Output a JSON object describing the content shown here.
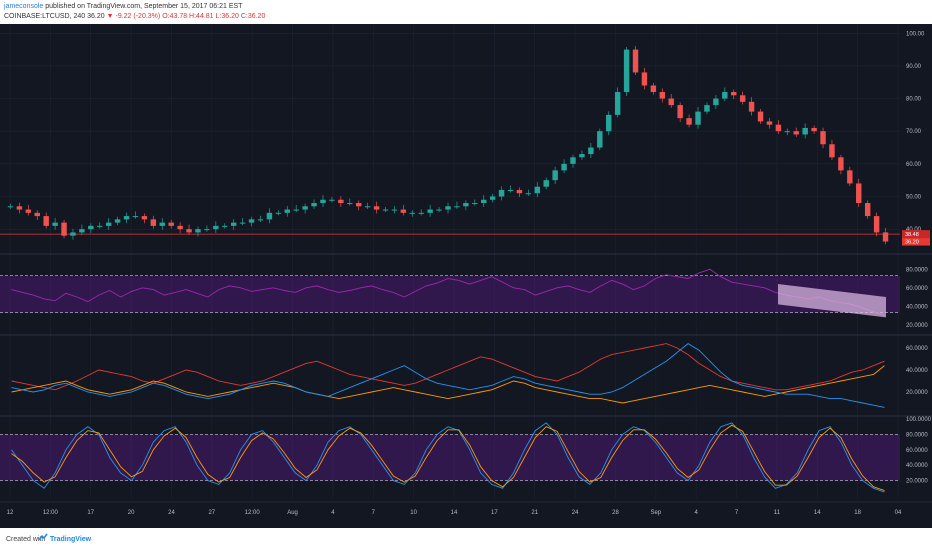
{
  "header": {
    "user": "jameconsole",
    "published": "published on TradingView.com, September 15, 2017 06:21 EST",
    "symbol": "COINBASE:LTCUSD, 240",
    "last": "36.20",
    "change": "▼ -9.22 (-20.3%)",
    "ohlc": "O:43.78 H:44.81 L:36.20 C:36.20"
  },
  "footer": {
    "created_with": "Created with",
    "brand": "TradingView"
  },
  "colors": {
    "background": "#131722",
    "up": "#26a69a",
    "down": "#ef5350",
    "rsi": "#9c27b0",
    "band": "#6a1b9a",
    "red_line": "#e53935",
    "orange_line": "#ff9800",
    "blue_line": "#2196f3",
    "stoch_k": "#2196f3",
    "stoch_d": "#ff9800"
  },
  "chart_data": [
    {
      "type": "candlestick",
      "title": "COINBASE:LTCUSD, 240",
      "ylim": [
        33,
        101
      ],
      "yticks": [
        "100.00",
        "90.00",
        "80.00",
        "70.00",
        "60.00",
        "50.00",
        "40.00"
      ],
      "price_labels": [
        "36.20",
        "38.48"
      ],
      "resistance": 38.48,
      "close_path": [
        47,
        46,
        45,
        44,
        41,
        42,
        38,
        39,
        40,
        41,
        41,
        42,
        43,
        44,
        44,
        43,
        41,
        42,
        41,
        40,
        39,
        40,
        40,
        41,
        41,
        42,
        42,
        43,
        43,
        45,
        45,
        46,
        46,
        47,
        48,
        49,
        49,
        48,
        48,
        47,
        47,
        46,
        46,
        46,
        45,
        45,
        45,
        46,
        46,
        47,
        47,
        48,
        48,
        49,
        50,
        52,
        52,
        51,
        51,
        53,
        55,
        58,
        60,
        62,
        63,
        65,
        70,
        75,
        82,
        95,
        88,
        84,
        82,
        80,
        78,
        74,
        72,
        76,
        78,
        80,
        82,
        81,
        79,
        76,
        73,
        72,
        70,
        70,
        69,
        71,
        70,
        66,
        62,
        58,
        54,
        48,
        44,
        39,
        36.2
      ],
      "x_axis": [
        "12",
        "12:00",
        "17",
        "20",
        "24",
        "27",
        "12:00",
        "Aug",
        "4",
        "7",
        "10",
        "14",
        "17",
        "21",
        "24",
        "28",
        "Sep",
        "4",
        "7",
        "11",
        "14",
        "18",
        "04"
      ]
    },
    {
      "type": "line",
      "title": "",
      "ylim": [
        10,
        90
      ],
      "yticks": [
        "80.0000",
        "60.0000",
        "40.0000",
        "20.0000"
      ],
      "band": [
        33,
        73
      ],
      "series": [
        {
          "values": [
            58,
            55,
            52,
            48,
            46,
            54,
            50,
            45,
            52,
            57,
            50,
            56,
            60,
            58,
            52,
            55,
            58,
            54,
            50,
            58,
            62,
            60,
            56,
            58,
            60,
            57,
            55,
            60,
            62,
            58,
            55,
            57,
            60,
            62,
            58,
            55,
            50,
            56,
            62,
            65,
            70,
            68,
            64,
            68,
            72,
            66,
            60,
            58,
            52,
            56,
            60,
            62,
            58,
            55,
            62,
            68,
            64,
            58,
            62,
            70,
            74,
            72,
            70,
            76,
            80,
            72,
            66,
            64,
            62,
            60,
            55,
            52,
            50,
            48,
            50,
            46,
            44,
            42,
            38,
            34,
            30
          ]
        }
      ]
    },
    {
      "type": "line",
      "title": "",
      "ylim": [
        0,
        70
      ],
      "yticks": [
        "60.0000",
        "40.0000",
        "20.0000"
      ],
      "series": [
        {
          "values": [
            30,
            28,
            26,
            24,
            22,
            26,
            30,
            35,
            40,
            38,
            36,
            34,
            30,
            28,
            32,
            36,
            40,
            38,
            34,
            30,
            28,
            26,
            28,
            30,
            34,
            38,
            42,
            46,
            48,
            44,
            40,
            36,
            34,
            32,
            30,
            28,
            26,
            28,
            32,
            36,
            40,
            44,
            48,
            52,
            50,
            46,
            42,
            38,
            34,
            32,
            30,
            34,
            38,
            44,
            50,
            54,
            56,
            58,
            60,
            62,
            64,
            60,
            54,
            46,
            40,
            34,
            30,
            28,
            26,
            24,
            22,
            22,
            24,
            26,
            28,
            30,
            34,
            38,
            40,
            44,
            48
          ]
        },
        {
          "values": [
            20,
            22,
            24,
            26,
            28,
            30,
            26,
            22,
            20,
            18,
            20,
            22,
            26,
            30,
            28,
            24,
            20,
            18,
            16,
            18,
            20,
            22,
            24,
            26,
            28,
            26,
            24,
            20,
            18,
            16,
            14,
            16,
            18,
            20,
            22,
            24,
            22,
            20,
            18,
            16,
            14,
            16,
            18,
            20,
            22,
            26,
            30,
            28,
            24,
            22,
            20,
            18,
            16,
            14,
            14,
            12,
            10,
            12,
            14,
            16,
            18,
            20,
            22,
            24,
            26,
            24,
            22,
            20,
            18,
            16,
            18,
            20,
            22,
            24,
            26,
            28,
            30,
            32,
            34,
            36,
            44
          ]
        },
        {
          "values": [
            24,
            22,
            20,
            22,
            26,
            28,
            24,
            20,
            18,
            16,
            18,
            20,
            24,
            28,
            26,
            22,
            18,
            16,
            14,
            16,
            18,
            22,
            26,
            28,
            30,
            28,
            24,
            20,
            18,
            16,
            20,
            24,
            28,
            32,
            36,
            40,
            44,
            38,
            32,
            28,
            26,
            24,
            22,
            24,
            26,
            30,
            34,
            32,
            28,
            26,
            24,
            22,
            20,
            18,
            18,
            20,
            24,
            30,
            36,
            42,
            48,
            56,
            64,
            58,
            48,
            38,
            30,
            26,
            24,
            22,
            20,
            18,
            18,
            18,
            16,
            14,
            14,
            12,
            10,
            8,
            6
          ]
        }
      ]
    },
    {
      "type": "line",
      "title": "",
      "ylim": [
        0,
        100
      ],
      "yticks": [
        "100.0000",
        "80.0000",
        "60.0000",
        "40.0000",
        "20.0000"
      ],
      "band": [
        20,
        80
      ],
      "series": [
        {
          "values": [
            60,
            40,
            20,
            10,
            30,
            60,
            80,
            90,
            80,
            50,
            30,
            20,
            40,
            70,
            85,
            90,
            70,
            40,
            20,
            15,
            30,
            60,
            80,
            85,
            70,
            50,
            30,
            20,
            40,
            70,
            85,
            90,
            80,
            60,
            40,
            20,
            15,
            30,
            60,
            80,
            90,
            85,
            60,
            30,
            15,
            10,
            30,
            60,
            85,
            95,
            80,
            50,
            25,
            15,
            30,
            60,
            80,
            90,
            85,
            70,
            50,
            30,
            20,
            40,
            70,
            90,
            95,
            80,
            50,
            25,
            10,
            15,
            30,
            60,
            85,
            90,
            70,
            40,
            20,
            10,
            5
          ]
        },
        {
          "values": [
            55,
            45,
            30,
            18,
            25,
            50,
            72,
            85,
            82,
            60,
            38,
            25,
            32,
            60,
            78,
            88,
            76,
            50,
            28,
            18,
            24,
            50,
            72,
            82,
            74,
            56,
            36,
            24,
            34,
            60,
            78,
            88,
            82,
            66,
            46,
            26,
            18,
            26,
            50,
            72,
            86,
            86,
            66,
            38,
            20,
            12,
            24,
            50,
            76,
            90,
            84,
            58,
            32,
            18,
            24,
            50,
            72,
            86,
            86,
            74,
            56,
            36,
            24,
            34,
            60,
            82,
            92,
            84,
            58,
            32,
            14,
            14,
            26,
            50,
            76,
            88,
            76,
            48,
            26,
            12,
            7
          ]
        }
      ]
    }
  ]
}
